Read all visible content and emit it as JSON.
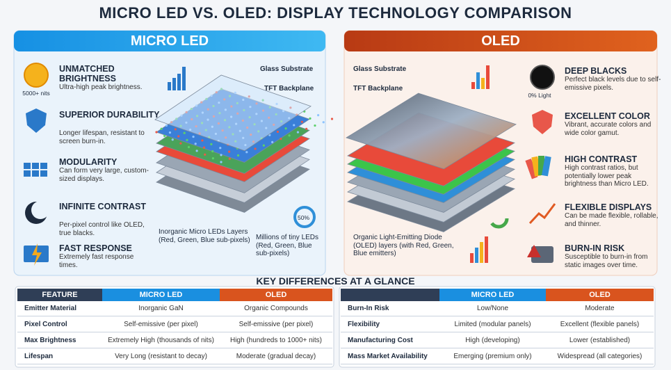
{
  "title": "MICRO LED VS. OLED: DISPLAY TECHNOLOGY COMPARISON",
  "micro_led": {
    "header": "MICRO LED",
    "features": [
      {
        "badge": "5000+ nits",
        "title": "UNMATCHED BRIGHTNESS",
        "text": "Ultra-high peak brightness."
      },
      {
        "title": "SUPERIOR DURABILITY",
        "text": "Longer lifespan, resistant to screen burn-in."
      },
      {
        "title": "MODULARITY",
        "text": "Can form very large, custom-sized displays."
      },
      {
        "title": "INFINITE CONTRAST",
        "text": "Per-pixel control like OLED, true blacks."
      },
      {
        "title": "FAST RESPONSE",
        "text": "Extremely fast response times."
      }
    ],
    "diagram": {
      "glass": "Glass Substrate",
      "tft": "TFT Backplane",
      "layers": "Inorganic Micro LEDs Layers (Red, Green, Blue sub-pixels)",
      "tiny": "Millions of tiny LEDs (Red, Green, Blue sub-pixels)",
      "donut": "50%"
    }
  },
  "oled": {
    "header": "OLED",
    "features": [
      {
        "badge": "0% Light",
        "title": "DEEP BLACKS",
        "text": "Perfect black levels due to self-emissive pixels."
      },
      {
        "title": "EXCELLENT COLOR",
        "text": "Vibrant, accurate colors and wide color gamut."
      },
      {
        "title": "HIGH CONTRAST",
        "text": "High contrast ratios, but potentially lower peak brightness than Micro LED."
      },
      {
        "title": "FLEXIBLE DISPLAYS",
        "text": "Can be made flexible, rollable, and thinner."
      },
      {
        "title": "BURN-IN RISK",
        "text": "Susceptible to burn-in from static images over time."
      }
    ],
    "diagram": {
      "glass": "Glass Substrate",
      "tft": "TFT Backplane",
      "layers": "Organic Light-Emitting Diode (OLED) layers (with Red, Green, Blue emitters)"
    }
  },
  "key_differences": {
    "title": "KEY DIFFERENCES AT A GLANCE",
    "table_left": {
      "headers": [
        "FEATURE",
        "MICRO LED",
        "OLED"
      ],
      "rows": [
        [
          "Emitter Material",
          "Inorganic GaN",
          "Organic Compounds"
        ],
        [
          "Pixel Control",
          "Self-emissive (per pixel)",
          "Self-emissive (per pixel)"
        ],
        [
          "Max Brightness",
          "Extremely High (thousands of nits)",
          "High (hundreds to 1000+ nits)"
        ],
        [
          "Lifespan",
          "Very Long (resistant to decay)",
          "Moderate (gradual decay)"
        ]
      ]
    },
    "table_right": {
      "headers": [
        "MICRO LED",
        "OLED"
      ],
      "rows": [
        [
          "Burn-In Risk",
          "Low/None",
          "Moderate"
        ],
        [
          "Flexibility",
          "Limited (modular panels)",
          "Excellent (flexible panels)"
        ],
        [
          "Manufacturing Cost",
          "High (developing)",
          "Lower (established)"
        ],
        [
          "Mass Market Availability",
          "Emerging (premium only)",
          "Widespread (all categories)"
        ]
      ]
    }
  }
}
